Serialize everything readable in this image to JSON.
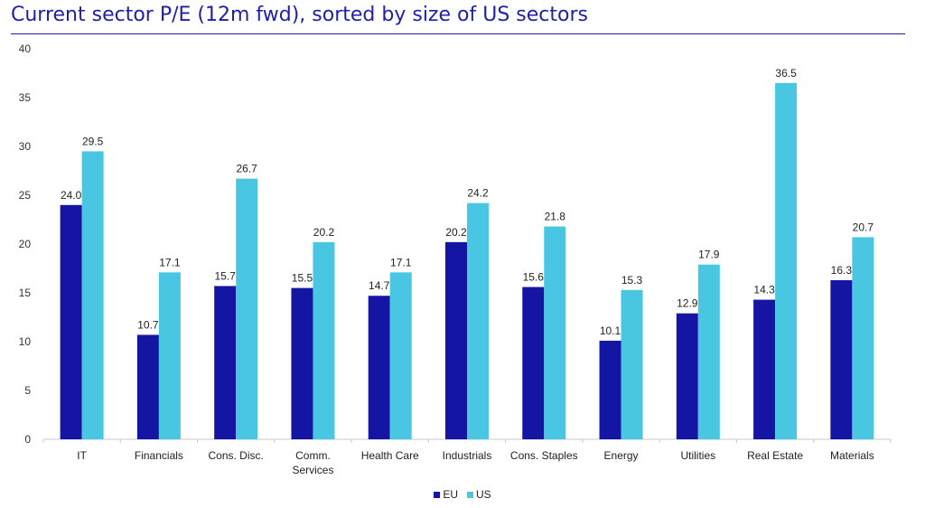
{
  "title": "Current sector P/E (12m fwd), sorted by size of US sectors",
  "colors": {
    "EU": "#1515a3",
    "US": "#49c7e2",
    "title": "#1f1fa8"
  },
  "chart_data": {
    "type": "bar",
    "title": "Current sector P/E (12m fwd), sorted by size of US sectors",
    "categories": [
      "IT",
      "Financials",
      "Cons. Disc.",
      "Comm. Services",
      "Health Care",
      "Industrials",
      "Cons. Staples",
      "Energy",
      "Utilities",
      "Real Estate",
      "Materials"
    ],
    "series": [
      {
        "name": "EU",
        "values": [
          24.0,
          10.7,
          15.7,
          15.5,
          14.7,
          20.2,
          15.6,
          10.1,
          12.9,
          14.3,
          16.3
        ]
      },
      {
        "name": "US",
        "values": [
          29.5,
          17.1,
          26.7,
          20.2,
          17.1,
          24.2,
          21.8,
          15.3,
          17.9,
          36.5,
          20.7
        ]
      }
    ],
    "yticks": [
      "0",
      "5",
      "10",
      "15",
      "20",
      "25",
      "30",
      "35",
      "40"
    ],
    "ylim": [
      0,
      40
    ],
    "grid": false,
    "legend": "bottom-center"
  },
  "legend": [
    {
      "label": "EU",
      "color": "#1515a3"
    },
    {
      "label": "US",
      "color": "#49c7e2"
    }
  ]
}
